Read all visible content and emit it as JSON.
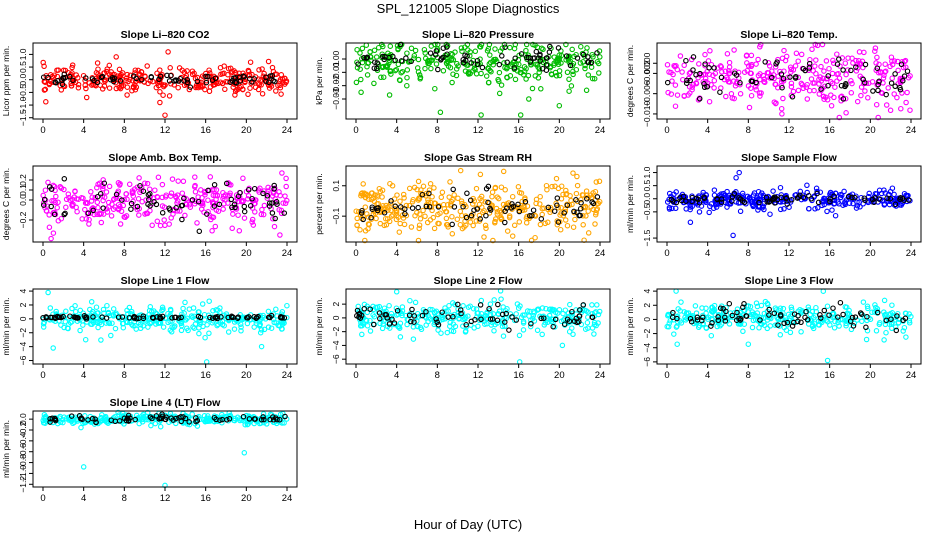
{
  "figure": {
    "title": "SPL_121005  Slope Diagnostics",
    "xlabel": "Hour of Day (UTC)"
  },
  "chart_data": [
    {
      "type": "scatter",
      "title": "Slope Li–820 CO2",
      "ylabel": "Licor ppm per min.",
      "xlim": [
        0,
        24
      ],
      "ylim": [
        -1.55,
        1.45
      ],
      "xticks": [
        "0",
        "4",
        "8",
        "12",
        "16",
        "20",
        "24"
      ],
      "yticks": [
        "−1.5",
        "−1.0",
        "−0.5",
        "0.0",
        "0.5",
        "1.0"
      ],
      "series": [
        {
          "color": "#ff0000",
          "center": 0.0,
          "spread": 0.25,
          "n": 320,
          "outliers": [
            [
              12.0,
              -1.4
            ],
            [
              11.5,
              -0.9
            ],
            [
              7.2,
              0.9
            ],
            [
              12.3,
              1.1
            ],
            [
              4.3,
              -0.7
            ]
          ]
        },
        {
          "color": "#000000",
          "center": 0.0,
          "spread": 0.1,
          "n": 70,
          "outliers": []
        }
      ]
    },
    {
      "type": "scatter",
      "title": "Slope Li–820 Pressure",
      "ylabel": "kPa per min.",
      "xlim": [
        0,
        24
      ],
      "ylim": [
        -0.045,
        0.012
      ],
      "xticks": [
        "0",
        "4",
        "8",
        "12",
        "16",
        "20",
        "24"
      ],
      "yticks": [
        "−0.03",
        "−0.02",
        "−0.01",
        "0.00"
      ],
      "series": [
        {
          "color": "#00bb00",
          "center": -0.003,
          "spread": 0.008,
          "n": 320,
          "outliers": [
            [
              0.5,
              -0.025
            ],
            [
              3.3,
              -0.027
            ],
            [
              8.3,
              -0.04
            ],
            [
              12.3,
              -0.042
            ],
            [
              16.2,
              -0.042
            ],
            [
              20.0,
              -0.035
            ],
            [
              17.0,
              -0.03
            ],
            [
              5.0,
              -0.02
            ]
          ]
        },
        {
          "color": "#000000",
          "center": 0.0,
          "spread": 0.004,
          "n": 70,
          "outliers": []
        }
      ]
    },
    {
      "type": "scatter",
      "title": "Slope Li–820 Temp.",
      "ylabel": "degrees C per min.",
      "xlim": [
        0,
        24
      ],
      "ylim": [
        -0.011,
        0.004
      ],
      "xticks": [
        "0",
        "4",
        "8",
        "12",
        "16",
        "20",
        "24"
      ],
      "yticks": [
        "−0.010",
        "−0.006",
        "−0.002",
        "0.000"
      ],
      "series": [
        {
          "color": "#ff00ff",
          "center": -0.003,
          "spread": 0.003,
          "n": 320,
          "outliers": [
            [
              11.3,
              -0.01
            ],
            [
              20.5,
              0.003
            ]
          ]
        },
        {
          "color": "#000000",
          "center": -0.003,
          "spread": 0.002,
          "n": 70,
          "outliers": []
        }
      ]
    },
    {
      "type": "scatter",
      "title": "Slope Amb. Box Temp.",
      "ylabel": "degrees C per min.",
      "xlim": [
        0,
        24
      ],
      "ylim": [
        -0.42,
        0.34
      ],
      "xticks": [
        "0",
        "4",
        "8",
        "12",
        "16",
        "20",
        "24"
      ],
      "yticks": [
        "−0.2",
        "0.0",
        "0.1",
        "0.2"
      ],
      "series": [
        {
          "color": "#ff00ff",
          "center": -0.02,
          "spread": 0.11,
          "n": 320,
          "outliers": [
            [
              23.5,
              0.27
            ],
            [
              23.3,
              -0.35
            ]
          ]
        },
        {
          "color": "#000000",
          "center": -0.02,
          "spread": 0.1,
          "n": 70,
          "outliers": []
        }
      ]
    },
    {
      "type": "scatter",
      "title": "Slope Gas Stream RH",
      "ylabel": "percent per min.",
      "xlim": [
        0,
        24
      ],
      "ylim": [
        -0.27,
        0.23
      ],
      "xticks": [
        "0",
        "4",
        "8",
        "12",
        "16",
        "20",
        "24"
      ],
      "yticks": [
        "−0.1",
        "0.1"
      ],
      "series": [
        {
          "color": "#ffa500",
          "center": -0.05,
          "spread": 0.09,
          "n": 360,
          "outliers": [
            [
              10.3,
              0.2
            ]
          ]
        },
        {
          "color": "#000000",
          "center": -0.05,
          "spread": 0.06,
          "n": 70,
          "outliers": []
        }
      ]
    },
    {
      "type": "scatter",
      "title": "Slope Sample Flow",
      "ylabel": "ml/min per min.",
      "xlim": [
        0,
        24
      ],
      "ylim": [
        -1.65,
        1.25
      ],
      "xticks": [
        "0",
        "4",
        "8",
        "12",
        "16",
        "20",
        "24"
      ],
      "yticks": [
        "−1.5",
        "−0.5",
        "0.0",
        "0.5",
        "1.0"
      ],
      "series": [
        {
          "color": "#0000ff",
          "center": -0.05,
          "spread": 0.18,
          "n": 320,
          "outliers": [
            [
              2.3,
              -0.9
            ],
            [
              6.5,
              -1.4
            ],
            [
              7.1,
              1.0
            ],
            [
              6.8,
              0.8
            ],
            [
              3.2,
              -0.5
            ]
          ]
        },
        {
          "color": "#000000",
          "center": 0.0,
          "spread": 0.08,
          "n": 70,
          "outliers": []
        }
      ]
    },
    {
      "type": "scatter",
      "title": "Slope Line 1 Flow",
      "ylabel": "ml/min per min.",
      "xlim": [
        0,
        24
      ],
      "ylim": [
        -6.5,
        4.3
      ],
      "xticks": [
        "0",
        "4",
        "8",
        "12",
        "16",
        "20",
        "24"
      ],
      "yticks": [
        "−6",
        "−4",
        "−2",
        "0",
        "2",
        "4"
      ],
      "series": [
        {
          "color": "#00ffff",
          "center": 0.0,
          "spread": 0.9,
          "n": 320,
          "outliers": [
            [
              0.5,
              3.8
            ],
            [
              1.0,
              -4.2
            ],
            [
              4.2,
              -3.0
            ],
            [
              16.1,
              -6.2
            ],
            [
              21.5,
              -4.0
            ]
          ]
        },
        {
          "color": "#000000",
          "center": 0.2,
          "spread": 0.1,
          "n": 80,
          "outliers": []
        }
      ]
    },
    {
      "type": "scatter",
      "title": "Slope Line 2 Flow",
      "ylabel": "ml/min per min.",
      "xlim": [
        0,
        24
      ],
      "ylim": [
        -6.7,
        4.2
      ],
      "xticks": [
        "0",
        "4",
        "8",
        "12",
        "16",
        "20",
        "24"
      ],
      "yticks": [
        "−6",
        "−4",
        "−2",
        "0",
        "2"
      ],
      "series": [
        {
          "color": "#00ffff",
          "center": 0.0,
          "spread": 1.1,
          "n": 320,
          "outliers": [
            [
              4.0,
              3.8
            ],
            [
              16.1,
              -6.4
            ],
            [
              20.3,
              -4.0
            ]
          ]
        },
        {
          "color": "#000000",
          "center": 0.2,
          "spread": 0.8,
          "n": 70,
          "outliers": []
        }
      ]
    },
    {
      "type": "scatter",
      "title": "Slope Line 3 Flow",
      "ylabel": "ml/min per min.",
      "xlim": [
        0,
        24
      ],
      "ylim": [
        -6.3,
        4.3
      ],
      "xticks": [
        "0",
        "4",
        "8",
        "12",
        "16",
        "20",
        "24"
      ],
      "yticks": [
        "−6",
        "−4",
        "−2",
        "0",
        "2",
        "4"
      ],
      "series": [
        {
          "color": "#00ffff",
          "center": 0.2,
          "spread": 1.0,
          "n": 320,
          "outliers": [
            [
              0.9,
              4.0
            ],
            [
              1.0,
              -3.5
            ],
            [
              8.0,
              -3.5
            ],
            [
              15.8,
              -5.8
            ],
            [
              23.5,
              -2.5
            ]
          ]
        },
        {
          "color": "#000000",
          "center": 0.3,
          "spread": 0.8,
          "n": 70,
          "outliers": []
        }
      ]
    },
    {
      "type": "scatter",
      "title": "Slope Line 4 (LT) Flow",
      "ylabel": "ml/min per min.",
      "xlim": [
        0,
        24
      ],
      "ylim": [
        -1.25,
        0.15
      ],
      "xticks": [
        "0",
        "4",
        "8",
        "12",
        "16",
        "20",
        "24"
      ],
      "yticks": [
        "−1.2",
        "−1.0",
        "−0.8",
        "−0.6",
        "−0.4",
        "−0.2",
        "0.0"
      ],
      "series": [
        {
          "color": "#00ffff",
          "center": 0.0,
          "spread": 0.05,
          "n": 320,
          "outliers": [
            [
              4.0,
              -0.88
            ],
            [
              12.0,
              -1.22
            ],
            [
              19.8,
              -0.62
            ]
          ]
        },
        {
          "color": "#000000",
          "center": 0.0,
          "spread": 0.04,
          "n": 70,
          "outliers": []
        }
      ]
    }
  ]
}
